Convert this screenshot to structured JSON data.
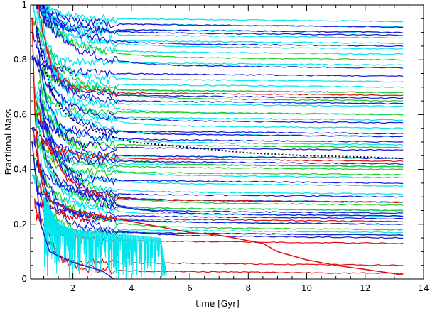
{
  "chart_data": {
    "type": "line",
    "title": "",
    "xlabel": "time [Gyr]",
    "ylabel": "Fractional Mass",
    "xlim": [
      0.55,
      14.0
    ],
    "ylim": [
      0.0,
      1.0
    ],
    "xticks": [
      2,
      4,
      6,
      8,
      10,
      12,
      14
    ],
    "yticks": [
      0,
      0.2,
      0.4,
      0.6,
      0.8,
      1
    ],
    "xtick_labels": [
      "2",
      "4",
      "6",
      "8",
      "10",
      "12",
      "14"
    ],
    "ytick_labels": [
      "0",
      "0.2",
      "0.4",
      "0.6",
      "0.8",
      "1"
    ],
    "grid": false,
    "legend": "none",
    "colors": {
      "cyan": "#00e5ee",
      "blue": "#1a1adb",
      "green": "#22cc22",
      "red": "#e01010",
      "black": "#000000"
    },
    "series_groups": [
      {
        "color": "cyan",
        "x_end": 13.3,
        "final_values": [
          0.94,
          0.92,
          0.9,
          0.88,
          0.86,
          0.84,
          0.82,
          0.78,
          0.72,
          0.7,
          0.68,
          0.63,
          0.6,
          0.58,
          0.55,
          0.52,
          0.49,
          0.44,
          0.41,
          0.37,
          0.34,
          0.31,
          0.28,
          0.25,
          0.23,
          0.2,
          0.17
        ]
      },
      {
        "color": "blue",
        "x_end": 13.3,
        "final_values": [
          0.92,
          0.9,
          0.89,
          0.85,
          0.77,
          0.74,
          0.66,
          0.64,
          0.57,
          0.53,
          0.52,
          0.5,
          0.47,
          0.44,
          0.42,
          0.35,
          0.3,
          0.28,
          0.24,
          0.23,
          0.22,
          0.2,
          0.16,
          0.15
        ]
      },
      {
        "color": "green",
        "x_end": 13.3,
        "final_values": [
          0.8,
          0.68,
          0.65,
          0.6,
          0.48,
          0.41,
          0.4,
          0.38,
          0.27,
          0.25,
          0.18,
          0.16
        ]
      },
      {
        "color": "red",
        "x_end": 13.3,
        "final_values": [
          0.67,
          0.43,
          0.28,
          0.21,
          0.13,
          0.05,
          0.02
        ]
      }
    ],
    "special_series": [
      {
        "color": "black",
        "style": "dotted",
        "points": [
          [
            0.75,
            0.92
          ],
          [
            1.0,
            0.78
          ],
          [
            1.3,
            0.68
          ],
          [
            1.6,
            0.62
          ],
          [
            2.0,
            0.58
          ],
          [
            2.5,
            0.55
          ],
          [
            3.0,
            0.53
          ],
          [
            4.0,
            0.5
          ],
          [
            6.0,
            0.48
          ],
          [
            8.0,
            0.46
          ],
          [
            10.0,
            0.45
          ],
          [
            12.0,
            0.445
          ],
          [
            13.3,
            0.44
          ]
        ]
      },
      {
        "color": "red",
        "style": "solid",
        "points": [
          [
            0.6,
            0.95
          ],
          [
            0.7,
            0.6
          ],
          [
            0.85,
            0.4
          ],
          [
            1.0,
            0.32
          ],
          [
            1.3,
            0.28
          ],
          [
            2.0,
            0.25
          ],
          [
            3.0,
            0.23
          ],
          [
            4.0,
            0.21
          ],
          [
            5.0,
            0.19
          ],
          [
            6.0,
            0.17
          ],
          [
            7.0,
            0.16
          ],
          [
            8.0,
            0.14
          ],
          [
            8.5,
            0.13
          ],
          [
            9.0,
            0.1
          ],
          [
            10.0,
            0.07
          ],
          [
            11.0,
            0.05
          ],
          [
            12.0,
            0.035
          ],
          [
            13.3,
            0.015
          ]
        ]
      },
      {
        "color": "cyan",
        "style": "noisy",
        "points": [
          [
            1.0,
            0.3
          ],
          [
            1.5,
            0.2
          ],
          [
            2.0,
            0.18
          ],
          [
            3.0,
            0.17
          ],
          [
            4.0,
            0.16
          ],
          [
            5.0,
            0.15
          ],
          [
            5.2,
            0.02
          ]
        ]
      },
      {
        "color": "blue",
        "style": "solid",
        "points": [
          [
            0.6,
            0.5
          ],
          [
            0.9,
            0.2
          ],
          [
            1.2,
            0.1
          ],
          [
            2.0,
            0.06
          ],
          [
            3.0,
            0.03
          ],
          [
            3.4,
            0.0
          ]
        ]
      }
    ]
  }
}
